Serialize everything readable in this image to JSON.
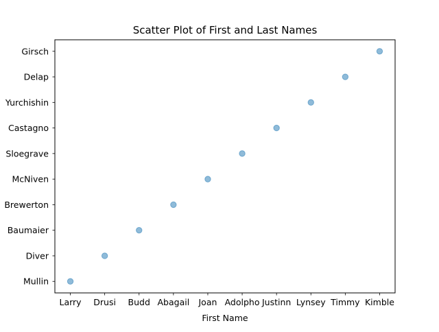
{
  "chart_data": {
    "type": "scatter",
    "title": "Scatter Plot of First and Last Names",
    "xlabel": "First Name",
    "ylabel": "",
    "x_categories": [
      "Larry",
      "Drusi",
      "Budd",
      "Abagail",
      "Joan",
      "Adolpho",
      "Justinn",
      "Lynsey",
      "Timmy",
      "Kimble"
    ],
    "y_categories": [
      "Mullin",
      "Diver",
      "Baumaier",
      "Brewerton",
      "McNiven",
      "Sloegrave",
      "Castagno",
      "Yurchishin",
      "Delap",
      "Girsch"
    ],
    "points": [
      {
        "x": "Larry",
        "y": "Mullin"
      },
      {
        "x": "Drusi",
        "y": "Diver"
      },
      {
        "x": "Budd",
        "y": "Baumaier"
      },
      {
        "x": "Abagail",
        "y": "Brewerton"
      },
      {
        "x": "Joan",
        "y": "McNiven"
      },
      {
        "x": "Adolpho",
        "y": "Sloegrave"
      },
      {
        "x": "Justinn",
        "y": "Castagno"
      },
      {
        "x": "Lynsey",
        "y": "Yurchishin"
      },
      {
        "x": "Timmy",
        "y": "Delap"
      },
      {
        "x": "Kimble",
        "y": "Girsch"
      }
    ],
    "marker_color": "#1f77b4",
    "marker_alpha": 0.5,
    "grid": false,
    "legend": "none"
  }
}
